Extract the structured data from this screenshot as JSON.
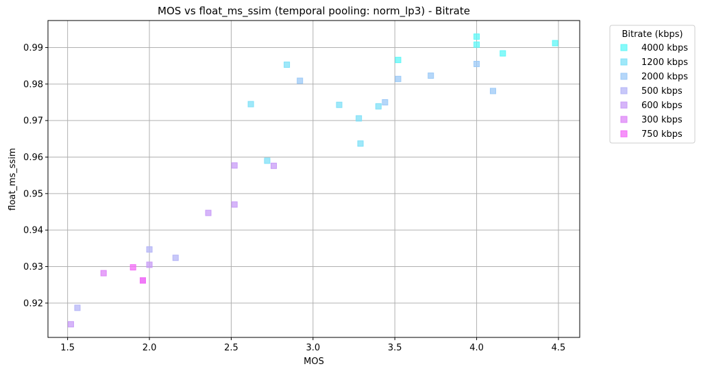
{
  "chart_data": {
    "type": "scatter",
    "title": "MOS vs float_ms_ssim (temporal pooling: norm_lp3) - Bitrate",
    "xlabel": "MOS",
    "ylabel": "float_ms_ssim",
    "xlim": [
      1.38,
      4.63
    ],
    "ylim": [
      0.9106,
      0.9974
    ],
    "xticks": [
      1.5,
      2.0,
      2.5,
      3.0,
      3.5,
      4.0,
      4.5
    ],
    "xtick_labels": [
      "1.5",
      "2.0",
      "2.5",
      "3.0",
      "3.5",
      "4.0",
      "4.5"
    ],
    "yticks": [
      0.92,
      0.93,
      0.94,
      0.95,
      0.96,
      0.97,
      0.98,
      0.99
    ],
    "ytick_labels": [
      "0.92",
      "0.93",
      "0.94",
      "0.95",
      "0.96",
      "0.97",
      "0.98",
      "0.99"
    ],
    "grid": true,
    "marker": "square",
    "legend": {
      "title": "Bitrate (kbps)",
      "position": "outside-right"
    },
    "series": [
      {
        "name": "4000 kbps",
        "color": "#5ff7f7",
        "points": [
          [
            4.0,
            0.993
          ],
          [
            4.0,
            0.9908
          ],
          [
            4.48,
            0.9912
          ],
          [
            3.52,
            0.9866
          ],
          [
            4.16,
            0.9884
          ]
        ]
      },
      {
        "name": "1200 kbps",
        "color": "#7fe0f7",
        "points": [
          [
            2.84,
            0.9853
          ],
          [
            2.62,
            0.9745
          ],
          [
            3.16,
            0.9743
          ],
          [
            3.28,
            0.9706
          ],
          [
            3.29,
            0.9637
          ],
          [
            3.4,
            0.9739
          ],
          [
            2.72,
            0.959
          ]
        ]
      },
      {
        "name": "2000 kbps",
        "color": "#9ccaf7",
        "points": [
          [
            2.92,
            0.9809
          ],
          [
            3.44,
            0.975
          ],
          [
            3.52,
            0.9814
          ],
          [
            3.72,
            0.9823
          ],
          [
            4.0,
            0.9855
          ],
          [
            4.1,
            0.9781
          ]
        ]
      },
      {
        "name": "500 kbps",
        "color": "#b5b5f7",
        "points": [
          [
            2.0,
            0.9347
          ],
          [
            2.16,
            0.9324
          ],
          [
            1.56,
            0.9187
          ]
        ]
      },
      {
        "name": "600 kbps",
        "color": "#c89cf7",
        "points": [
          [
            2.52,
            0.9577
          ],
          [
            2.76,
            0.9576
          ],
          [
            2.36,
            0.9447
          ],
          [
            2.52,
            0.947
          ],
          [
            2.0,
            0.9305
          ],
          [
            1.52,
            0.9142
          ]
        ]
      },
      {
        "name": "300 kbps",
        "color": "#de85f7",
        "points": [
          [
            1.72,
            0.9282
          ],
          [
            1.96,
            0.9262
          ]
        ]
      },
      {
        "name": "750 kbps",
        "color": "#f36ef7",
        "points": [
          [
            1.9,
            0.9298
          ],
          [
            1.96,
            0.9262
          ]
        ]
      }
    ]
  }
}
